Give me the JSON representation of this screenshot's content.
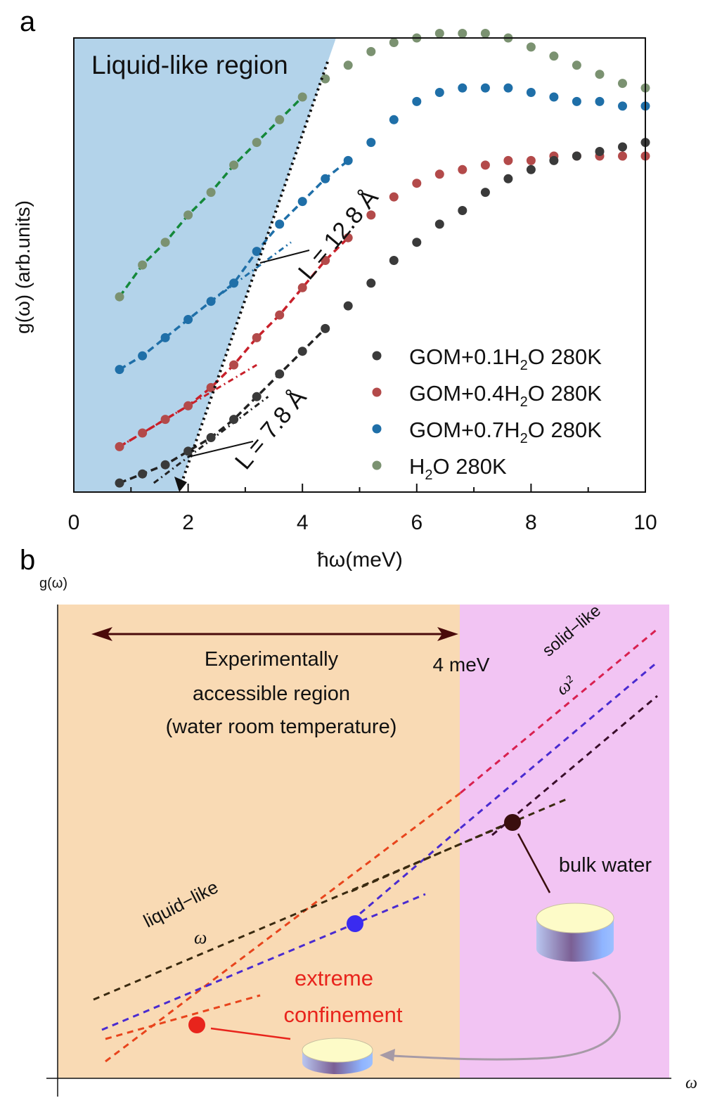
{
  "chart_data": [
    {
      "panel_label": "a",
      "type": "scatter",
      "title": "",
      "xlabel": "ħω(meV)",
      "ylabel": "g(ω) (arb.units)",
      "xlim": [
        0,
        10
      ],
      "xticks": [
        "0",
        "2",
        "4",
        "6",
        "8",
        "10"
      ],
      "ylim": [
        0,
        100
      ],
      "region_label": "Liquid-like region",
      "legend_position": "bottom-right",
      "annotations": [
        {
          "text": "L = 12.8 Å"
        },
        {
          "text": "L = 7.8 Å"
        }
      ],
      "series": [
        {
          "name": "H2O 280K",
          "legend_main": "H",
          "legend_sub": "2",
          "legend_rest": "O 280K",
          "color": "#7b9271",
          "fit_color": "#14883a",
          "x": [
            0.8,
            1.2,
            1.6,
            2.0,
            2.4,
            2.8,
            3.2,
            3.6,
            4.0,
            4.4,
            4.8,
            5.2,
            5.6,
            6.0,
            6.4,
            6.8,
            7.2,
            7.6,
            8.0,
            8.4,
            8.8,
            9.2,
            9.6,
            10.0
          ],
          "y": [
            43,
            50,
            55,
            61,
            66,
            72,
            77,
            82,
            87,
            91,
            94,
            97,
            99,
            100,
            101,
            101,
            101,
            100,
            98,
            96,
            94,
            92,
            90,
            89
          ]
        },
        {
          "name": "GOM+0.7H2O 280K",
          "legend_main": "GOM+0.7H",
          "legend_sub": "2",
          "legend_rest": "O 280K",
          "color": "#1f6fa8",
          "fit_color": "#1f6fa8",
          "x": [
            0.8,
            1.2,
            1.6,
            2.0,
            2.4,
            2.8,
            3.2,
            3.6,
            4.0,
            4.4,
            4.8,
            5.2,
            5.6,
            6.0,
            6.4,
            6.8,
            7.2,
            7.6,
            8.0,
            8.4,
            8.8,
            9.2,
            9.6,
            10.0
          ],
          "y": [
            27,
            30,
            34,
            38,
            42,
            46,
            53,
            59,
            64,
            69,
            73,
            77,
            82,
            86,
            88,
            89,
            89,
            89,
            88,
            87,
            86,
            86,
            85,
            85
          ]
        },
        {
          "name": "GOM+0.4H2O 280K",
          "legend_main": "GOM+0.4H",
          "legend_sub": "2",
          "legend_rest": "O 280K",
          "color": "#b34a4a",
          "fit_color": "#c8202a",
          "x": [
            0.8,
            1.2,
            1.6,
            2.0,
            2.4,
            2.8,
            3.2,
            3.6,
            4.0,
            4.4,
            4.8,
            5.2,
            5.6,
            6.0,
            6.4,
            6.8,
            7.2,
            7.6,
            8.0,
            8.4,
            8.8,
            9.2,
            9.6,
            10.0
          ],
          "y": [
            10,
            13,
            16,
            19,
            23,
            28,
            34,
            39,
            45,
            51,
            56,
            61,
            65,
            68,
            70,
            71,
            72,
            73,
            73,
            74,
            74,
            74,
            74,
            74
          ]
        },
        {
          "name": "GOM+0.1H2O 280K",
          "legend_main": "GOM+0.1H",
          "legend_sub": "2",
          "legend_rest": "O 280K",
          "color": "#3a3a3a",
          "fit_color": "#222222",
          "x": [
            0.8,
            1.2,
            1.6,
            2.0,
            2.4,
            2.8,
            3.2,
            3.6,
            4.0,
            4.4,
            4.8,
            5.2,
            5.6,
            6.0,
            6.4,
            6.8,
            7.2,
            7.6,
            8.0,
            8.4,
            8.8,
            9.2,
            9.6,
            10.0
          ],
          "y": [
            2,
            4,
            6,
            9,
            12,
            16,
            21,
            26,
            31,
            36,
            41,
            46,
            51,
            55,
            59,
            62,
            66,
            69,
            71,
            73,
            74,
            75,
            76,
            77
          ]
        }
      ]
    },
    {
      "panel_label": "b",
      "type": "line",
      "ylabel": "g(ω)",
      "xlabel": "ω",
      "marker_4mev": "4 meV",
      "region_text": [
        "Experimentally",
        "accessible region",
        "(water room temperature)"
      ],
      "solid_label": "solid−like",
      "solid_power": "ω²",
      "liquid_label": "liquid−like",
      "liquid_power": "ω",
      "bulk_label": "bulk water",
      "confinement_label": [
        "extreme",
        "confinement"
      ],
      "colors": {
        "left_region": "#f9dab4",
        "right_region": "#f2c4f3",
        "red": "#e8241c",
        "blue": "#3a2bd8",
        "dark": "#3a0e0e"
      }
    }
  ]
}
